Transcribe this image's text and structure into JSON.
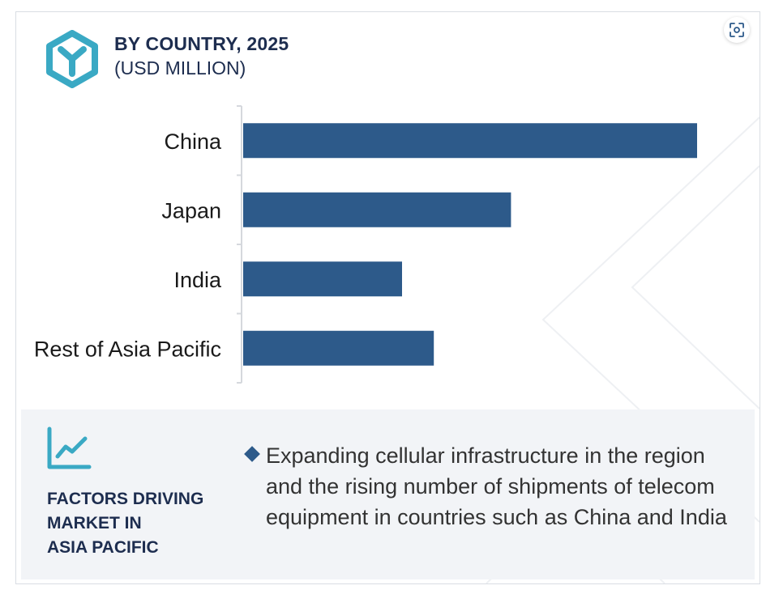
{
  "header": {
    "title": "BY COUNTRY, 2025",
    "subtitle": "(USD MILLION)"
  },
  "icons": {
    "logo": "hexagon-y-logo-icon",
    "expand": "expand-focus-icon",
    "factors": "line-chart-icon",
    "bullet": "diamond-bullet-icon"
  },
  "colors": {
    "bar": "#2d5a8a",
    "logo": "#3aa9c4",
    "heading": "#1d2d4f",
    "panel": "#f2f4f7"
  },
  "chart_data": {
    "type": "bar",
    "orientation": "horizontal",
    "categories": [
      "China",
      "Japan",
      "India",
      "Rest of Asia Pacific"
    ],
    "values": [
      100,
      59,
      35,
      42
    ],
    "xlim": [
      0,
      100
    ],
    "grid": false,
    "legend": "none",
    "title": "BY COUNTRY, 2025",
    "subtitle": "(USD MILLION)"
  },
  "factors": {
    "title_lines": [
      "FACTORS DRIVING",
      "MARKET IN",
      "ASIA PACIFIC"
    ],
    "items": [
      "Expanding cellular infrastructure in the region and the rising number of shipments of telecom equipment in countries such as China and India"
    ]
  }
}
